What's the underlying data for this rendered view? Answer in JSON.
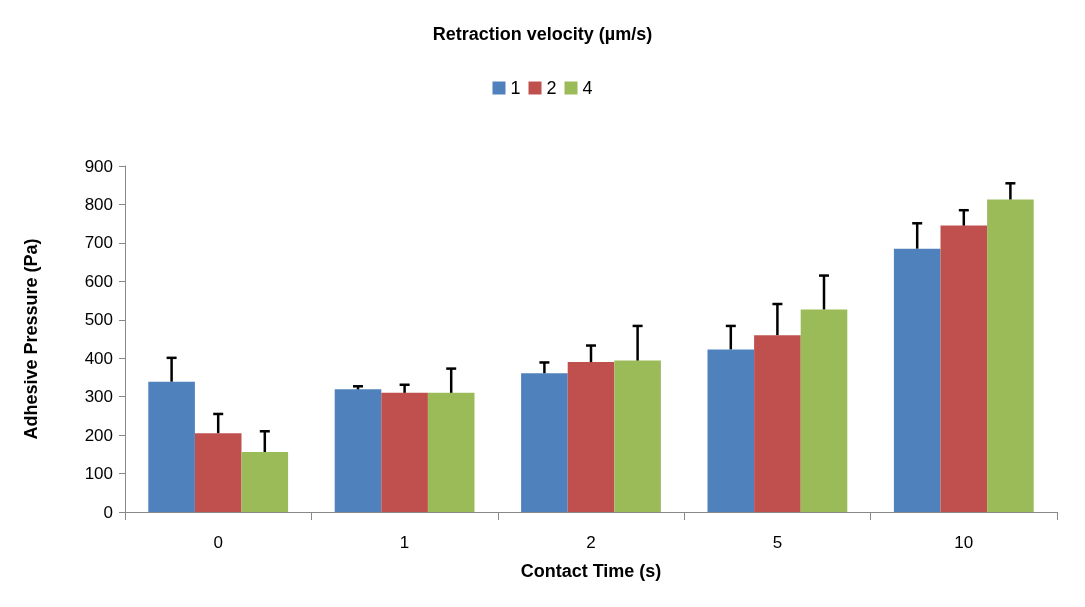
{
  "chart_data": {
    "type": "bar",
    "title": "Retraction velocity (µm/s)",
    "xlabel": "Contact Time (s)",
    "ylabel": "Adhesive Pressure (Pa)",
    "categories": [
      "0",
      "1",
      "2",
      "5",
      "10"
    ],
    "series": [
      {
        "name": "1",
        "color": "#4f81bd",
        "values": [
          339,
          319,
          361,
          423,
          685
        ],
        "errors": [
          [
            339,
            401
          ],
          [
            319,
            327
          ],
          [
            361,
            389
          ],
          [
            423,
            484
          ],
          [
            685,
            751
          ]
        ]
      },
      {
        "name": "2",
        "color": "#c0504d",
        "values": [
          205,
          310,
          390,
          460,
          745
        ],
        "errors": [
          [
            205,
            255
          ],
          [
            310,
            331
          ],
          [
            390,
            433
          ],
          [
            460,
            541
          ],
          [
            745,
            785
          ]
        ]
      },
      {
        "name": "4",
        "color": "#9bbb59",
        "values": [
          156,
          310,
          394,
          527,
          813
        ],
        "errors": [
          [
            156,
            210
          ],
          [
            310,
            373
          ],
          [
            394,
            484
          ],
          [
            527,
            615
          ],
          [
            813,
            855
          ]
        ]
      }
    ],
    "ylim": [
      0,
      900
    ],
    "yticks": [
      0,
      100,
      200,
      300,
      400,
      500,
      600,
      700,
      800,
      900
    ],
    "grid": false,
    "legend": "top"
  }
}
